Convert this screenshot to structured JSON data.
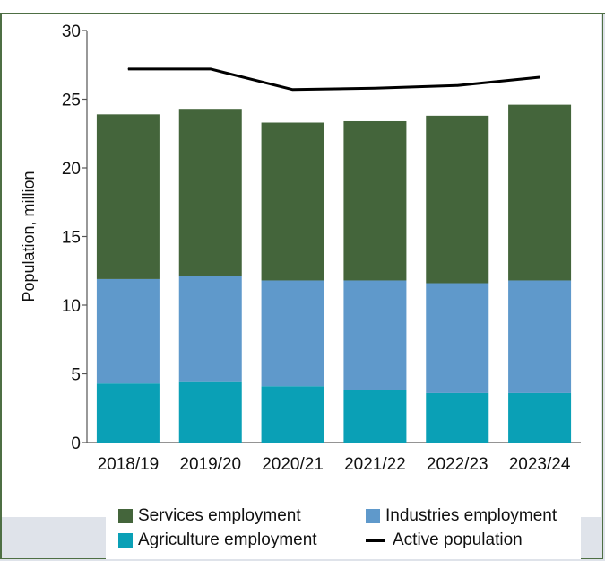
{
  "chart_data": {
    "type": "bar",
    "subtype": "stacked-bar-with-line",
    "title": "",
    "xlabel": "",
    "ylabel": "Population, million",
    "ylim": [
      0,
      30
    ],
    "yticks": [
      "0",
      "5",
      "10",
      "15",
      "20",
      "25",
      "30"
    ],
    "categories": [
      "2018/19",
      "2019/20",
      "2020/21",
      "2021/22",
      "2022/23",
      "2023/24"
    ],
    "series": [
      {
        "name": "Agriculture employment",
        "kind": "bar",
        "color": "#0aa0b6",
        "values": [
          4.3,
          4.4,
          4.1,
          3.8,
          3.6,
          3.6
        ]
      },
      {
        "name": "Industries employment",
        "kind": "bar",
        "color": "#5f99cb",
        "values": [
          7.6,
          7.7,
          7.7,
          8.0,
          8.0,
          8.2
        ]
      },
      {
        "name": "Services employment",
        "kind": "bar",
        "color": "#44653b",
        "values": [
          12.0,
          12.2,
          11.5,
          11.6,
          12.2,
          12.8
        ]
      },
      {
        "name": "Active population",
        "kind": "line",
        "color": "#000000",
        "values": [
          27.2,
          27.2,
          25.7,
          25.8,
          26.0,
          26.6
        ]
      }
    ],
    "grid": false,
    "legend_position": "bottom"
  },
  "legend": {
    "services": "Services employment",
    "industries": "Industries employment",
    "agriculture": "Agriculture employment",
    "active": "Active population"
  },
  "colors": {
    "frame": "#4e6f44",
    "background": "#dfe3ea"
  }
}
